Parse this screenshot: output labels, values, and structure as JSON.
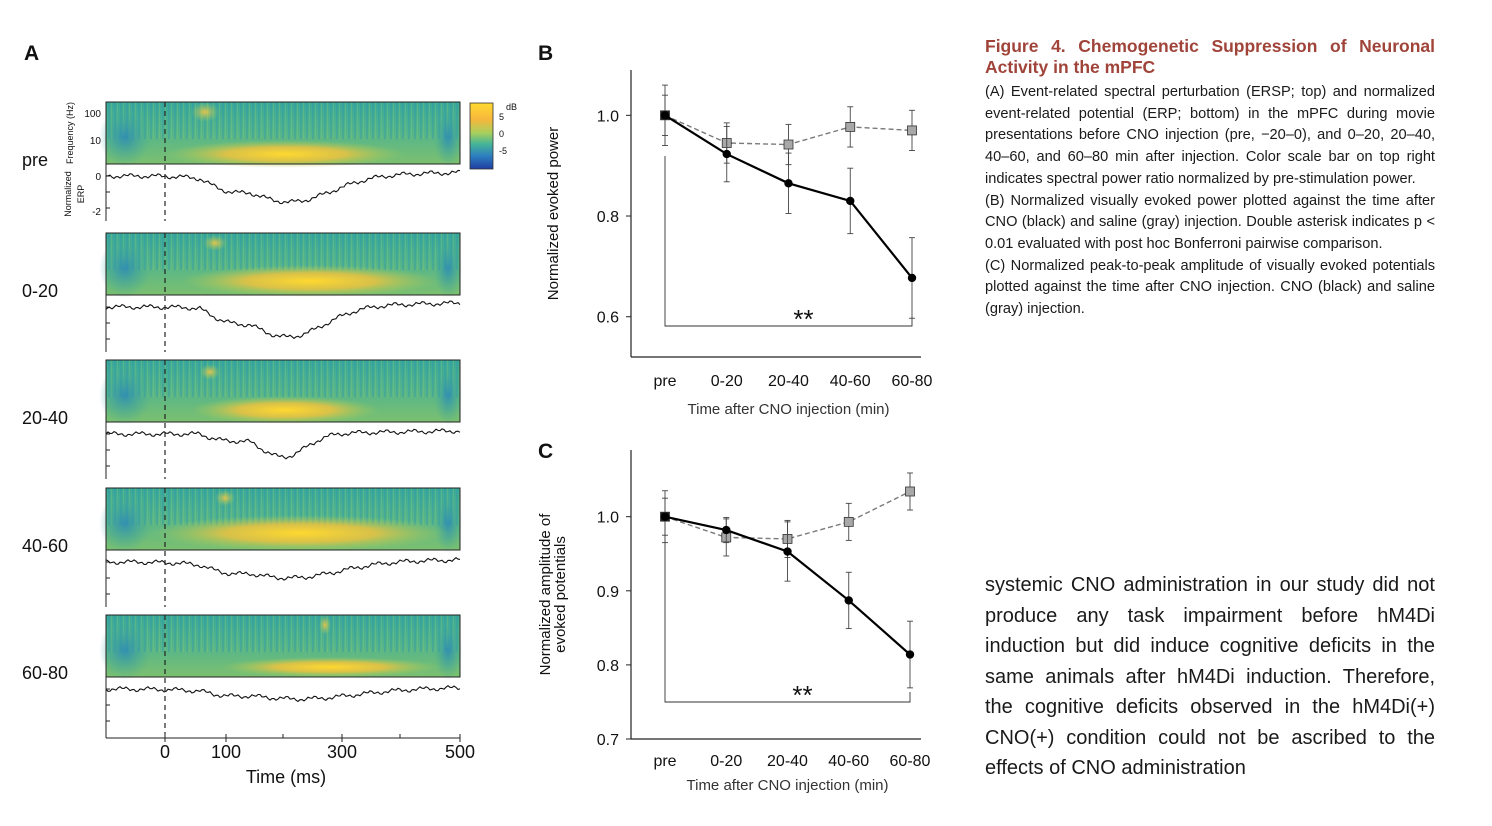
{
  "panel_a": {
    "letter": "A",
    "rows": [
      {
        "label": "pre"
      },
      {
        "label": "0-20"
      },
      {
        "label": "20-40"
      },
      {
        "label": "40-60"
      },
      {
        "label": "60-80"
      }
    ],
    "freq_axis_label": "Frequency (Hz)",
    "freq_ticks": [
      "100",
      "10"
    ],
    "erp_axis_label_1": "Normalized",
    "erp_axis_label_2": "ERP",
    "erp_ticks": [
      "0",
      "-2"
    ],
    "colorbar": {
      "unit": "dB",
      "ticks": [
        "5",
        "0",
        "-5"
      ],
      "colors": [
        "#ffd92f",
        "#f6b73c",
        "#a9cf5b",
        "#45b597",
        "#2d7fbf",
        "#1f3ea3"
      ]
    },
    "x_axis": {
      "ticks": [
        "0",
        "100",
        "300",
        "500"
      ],
      "label": "Time (ms)"
    }
  },
  "chart_data": [
    {
      "type": "line",
      "panel": "B",
      "categories": [
        "pre",
        "0-20",
        "20-40",
        "40-60",
        "60-80"
      ],
      "ylabel": "Normalized evoked power",
      "xlabel": "Time after CNO injection (min)",
      "ylim": [
        0.52,
        1.09
      ],
      "yticks": [
        "1.0",
        "0.8",
        "0.6"
      ],
      "significance": "**",
      "series": [
        {
          "values": [
            1.0,
            0.923,
            0.865,
            0.83,
            0.677
          ],
          "errors": [
            0.06,
            0.055,
            0.06,
            0.065,
            0.08
          ],
          "color": "#000000",
          "marker": "circle"
        },
        {
          "values": [
            1.0,
            0.945,
            0.942,
            0.977,
            0.97
          ],
          "errors": [
            0.04,
            0.04,
            0.04,
            0.04,
            0.04
          ],
          "color": "#7a7a7a",
          "marker": "square"
        }
      ]
    },
    {
      "type": "line",
      "panel": "C",
      "categories": [
        "pre",
        "0-20",
        "20-40",
        "40-60",
        "60-80"
      ],
      "ylabel": "Normalized amplitude of evoked potentials",
      "xlabel": "Time after CNO injection (min)",
      "ylim": [
        0.7,
        1.09
      ],
      "yticks": [
        "1.0",
        "0.9",
        "0.8",
        "0.7"
      ],
      "significance": "**",
      "series": [
        {
          "values": [
            1.0,
            0.982,
            0.953,
            0.887,
            0.814
          ],
          "errors": [
            0.035,
            0.017,
            0.04,
            0.038,
            0.045
          ],
          "color": "#000000",
          "marker": "circle"
        },
        {
          "values": [
            1.0,
            0.972,
            0.97,
            0.993,
            1.034
          ],
          "errors": [
            0.025,
            0.025,
            0.025,
            0.025,
            0.025
          ],
          "color": "#7a7a7a",
          "marker": "square"
        }
      ]
    }
  ],
  "panel_b": {
    "letter": "B"
  },
  "panel_c": {
    "letter": "C"
  },
  "caption": {
    "title": "Figure 4. Chemogenetic Suppression of Neuronal Activity in the mPFC",
    "a": "(A) Event-related spectral perturbation (ERSP; top) and normalized event-related potential (ERP; bottom) in the mPFC during movie presentations before CNO injection (pre, −20–0), and 0–20, 20–40, 40–60, and 60–80 min after injection. Color scale bar on top right indicates spectral power ratio normalized by pre-stimulation power.",
    "b": "(B) Normalized visually evoked power plotted against the time after CNO (black) and saline (gray) injection. Double asterisk indicates p < 0.01 evaluated with post hoc Bonferroni pairwise comparison.",
    "c": "(C) Normalized peak-to-peak amplitude of visually evoked potentials plotted against the time after CNO injection. CNO (black) and saline (gray) injection."
  },
  "body_text": "systemic CNO administration in our study did not produce any task impairment before hM4Di induction but did induce cognitive deficits in the same animals after hM4Di induction. Therefore, the cognitive deficits observed in the hM4Di(+) CNO(+) condition could not be ascribed to the effects of CNO administration"
}
